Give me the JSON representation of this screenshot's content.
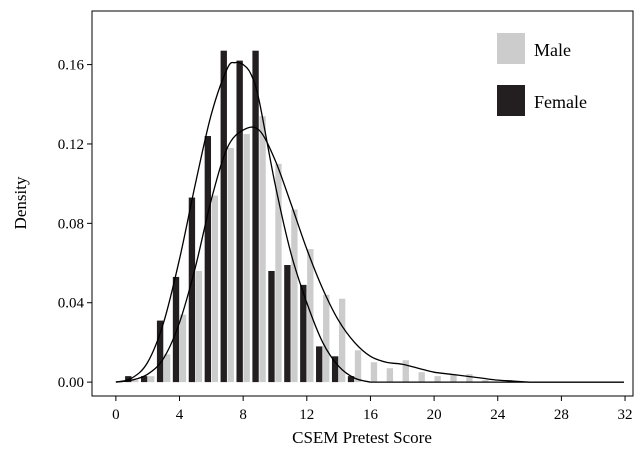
{
  "chart_data": {
    "type": "bar",
    "xlabel": "CSEM Pretest Score",
    "ylabel": "Density",
    "xlim": [
      -1.5,
      32.5
    ],
    "ylim": [
      -0.007,
      0.187
    ],
    "x_ticks": [
      0,
      4,
      8,
      12,
      16,
      20,
      24,
      28,
      32
    ],
    "x_tick_labels": [
      "0",
      "4",
      "8",
      "12",
      "16",
      "20",
      "24",
      "28",
      "32"
    ],
    "y_ticks": [
      0,
      0.04,
      0.08,
      0.12,
      0.16
    ],
    "y_tick_labels": [
      "0.00",
      "0.04",
      "0.08",
      "0.12",
      "0.16"
    ],
    "grid": false,
    "legend_position": "top-right",
    "x": [
      0,
      1,
      2,
      3,
      4,
      5,
      6,
      7,
      8,
      9,
      10,
      11,
      12,
      13,
      14,
      15,
      16,
      17,
      18,
      19,
      20,
      21,
      22,
      23,
      24,
      25,
      26,
      27,
      28,
      29,
      30,
      31,
      32
    ],
    "series": [
      {
        "name": "Male",
        "color": "#cccccc",
        "values": [
          0,
          0.001,
          0.003,
          0.014,
          0.034,
          0.056,
          0.094,
          0.118,
          0.125,
          0.134,
          0.11,
          0.087,
          0.067,
          0.044,
          0.042,
          0.016,
          0.01,
          0.007,
          0.011,
          0.005,
          0.003,
          0.004,
          0.004,
          0.001,
          0,
          0,
          0,
          0,
          0,
          0,
          0,
          0,
          0
        ]
      },
      {
        "name": "Female",
        "color": "#231f20",
        "values": [
          0,
          0.003,
          0.003,
          0.031,
          0.053,
          0.093,
          0.124,
          0.167,
          0.162,
          0.167,
          0.056,
          0.059,
          0.049,
          0.018,
          0.013,
          0.003,
          0,
          0,
          0,
          0,
          0,
          0,
          0,
          0,
          0,
          0,
          0,
          0,
          0,
          0,
          0,
          0,
          0
        ]
      }
    ],
    "density_curves": [
      {
        "series": "Male",
        "x": [
          0,
          1,
          2,
          3,
          4,
          5,
          6,
          7,
          8,
          9,
          10,
          11,
          12,
          13,
          14,
          15,
          16,
          17,
          18,
          19,
          20,
          21,
          22,
          23,
          24,
          25,
          26
        ],
        "y": [
          0,
          0.001,
          0.004,
          0.012,
          0.03,
          0.058,
          0.092,
          0.118,
          0.127,
          0.127,
          0.112,
          0.09,
          0.067,
          0.047,
          0.031,
          0.02,
          0.013,
          0.01,
          0.009,
          0.007,
          0.005,
          0.004,
          0.003,
          0.002,
          0.001,
          0.0005,
          0
        ]
      },
      {
        "series": "Female",
        "x": [
          0,
          1,
          2,
          3,
          4,
          5,
          6,
          7,
          7.5,
          8,
          8.5,
          9,
          10,
          11,
          12,
          13,
          14,
          15,
          16
        ],
        "y": [
          0,
          0.002,
          0.01,
          0.03,
          0.062,
          0.1,
          0.135,
          0.158,
          0.161,
          0.16,
          0.155,
          0.142,
          0.1,
          0.065,
          0.04,
          0.02,
          0.008,
          0.002,
          0
        ]
      }
    ]
  }
}
